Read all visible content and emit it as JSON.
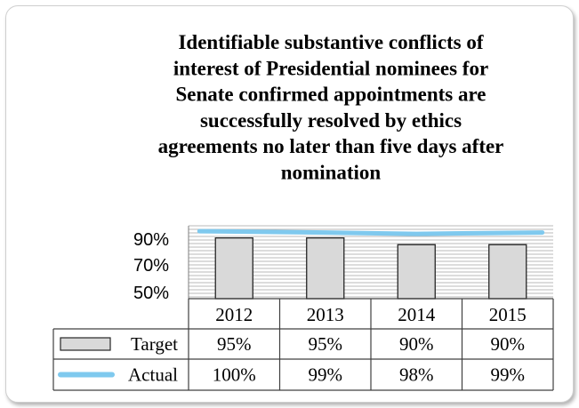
{
  "chart_data": {
    "type": "bar",
    "title": "Identifiable substantive conflicts of interest of Presidential nominees for Senate confirmed appointments are successfully resolved by ethics agreements no later than five days after nomination",
    "title_lines": [
      "Identifiable substantive conflicts of",
      "interest of Presidential nominees for",
      "Senate confirmed appointments are",
      "successfully resolved by ethics",
      "agreements no later than five days after",
      "nomination"
    ],
    "categories": [
      "2012",
      "2013",
      "2014",
      "2015"
    ],
    "series": [
      {
        "name": "Target",
        "kind": "bar",
        "values": [
          95,
          95,
          90,
          90
        ],
        "labels": [
          "95%",
          "95%",
          "90%",
          "90%"
        ],
        "color": "#d9d9d9"
      },
      {
        "name": "Actual",
        "kind": "line",
        "values": [
          100,
          99,
          98,
          99
        ],
        "labels": [
          "100%",
          "99%",
          "98%",
          "99%"
        ],
        "color": "#7fc9ee"
      }
    ],
    "y_ticks": [
      {
        "value": 90,
        "label": "90%"
      },
      {
        "value": 70,
        "label": "70%"
      },
      {
        "value": 50,
        "label": "50%"
      }
    ],
    "ylim": [
      50,
      104
    ],
    "grid": true,
    "legend": "data-table",
    "data_table": true
  }
}
